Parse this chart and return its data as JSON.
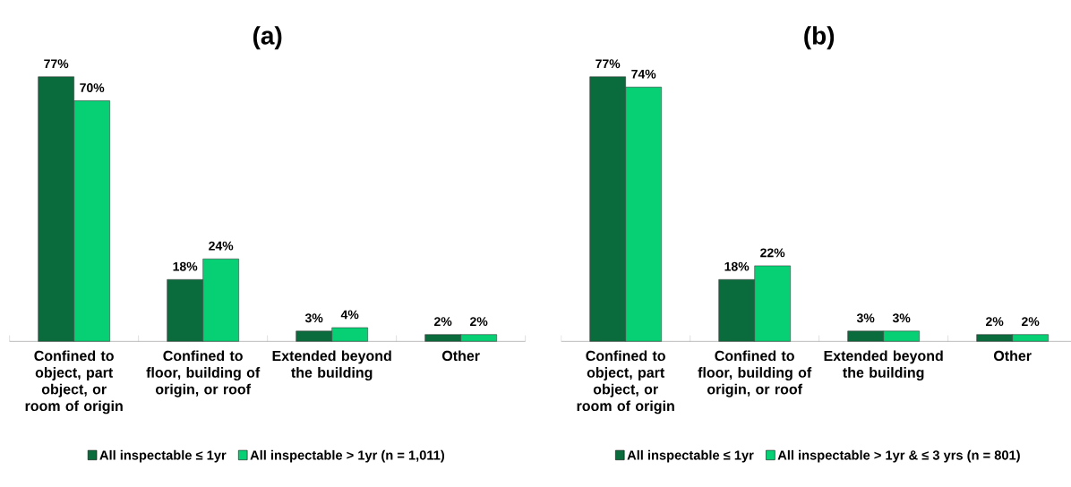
{
  "chart_data": [
    {
      "type": "bar",
      "title": "(a)",
      "categories": [
        "Confined to object, part object, or room of origin",
        "Confined to floor, building of origin, or roof",
        "Extended beyond the building",
        "Other"
      ],
      "series": [
        {
          "name": "All inspectable ≤ 1yr",
          "color": "#0a6b3c",
          "values": [
            77,
            18,
            3,
            2
          ],
          "value_labels": [
            "77%",
            "18%",
            "3%",
            "2%"
          ]
        },
        {
          "name": "All inspectable > 1yr (n = 1,011)",
          "color": "#06cf74",
          "values": [
            70,
            24,
            4,
            2
          ],
          "value_labels": [
            "70%",
            "24%",
            "4%",
            "2%"
          ]
        }
      ],
      "legend": "bottom"
    },
    {
      "type": "bar",
      "title": "(b)",
      "categories": [
        "Confined to object, part object, or room of origin",
        "Confined to floor, building of origin, or roof",
        "Extended beyond the building",
        "Other"
      ],
      "series": [
        {
          "name": "All inspectable ≤ 1yr",
          "color": "#0a6b3c",
          "values": [
            77,
            18,
            3,
            2
          ],
          "value_labels": [
            "77%",
            "18%",
            "3%",
            "2%"
          ]
        },
        {
          "name": "All inspectable > 1yr & ≤ 3 yrs (n = 801)",
          "color": "#06cf74",
          "values": [
            74,
            22,
            3,
            2
          ],
          "value_labels": [
            "74%",
            "22%",
            "3%",
            "2%"
          ]
        }
      ],
      "legend": "bottom"
    }
  ]
}
